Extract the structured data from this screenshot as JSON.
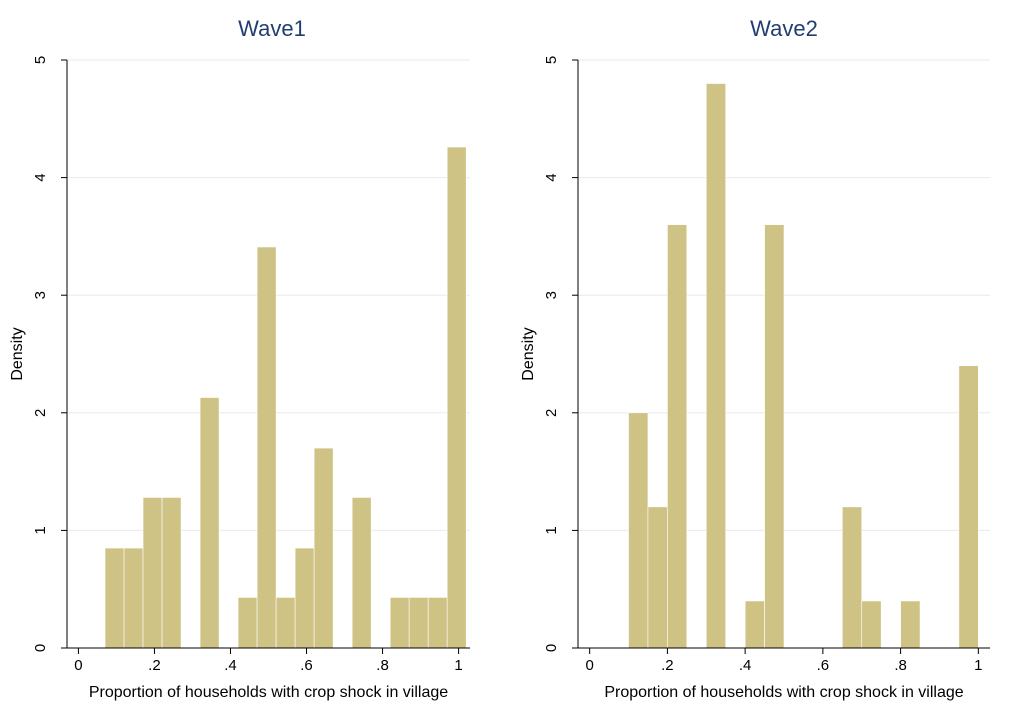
{
  "chart_data": [
    {
      "type": "bar",
      "title": "Wave1",
      "xlabel": "Proportion of households with crop shock in village",
      "ylabel": "Density",
      "xlim": [
        -0.03,
        1.03
      ],
      "ylim": [
        0,
        5
      ],
      "xticks": [
        0,
        0.2,
        0.4,
        0.6,
        0.8,
        1
      ],
      "xtick_labels": [
        "0",
        ".2",
        ".4",
        ".6",
        ".8",
        "1"
      ],
      "yticks": [
        0,
        1,
        2,
        3,
        4,
        5
      ],
      "ytick_labels": [
        "0",
        "1",
        "2",
        "3",
        "4",
        "5"
      ],
      "grid": true,
      "bin_width": 0.05,
      "bins": [
        {
          "x0": 0.07,
          "x1": 0.12,
          "density": 0.85
        },
        {
          "x0": 0.12,
          "x1": 0.17,
          "density": 0.85
        },
        {
          "x0": 0.17,
          "x1": 0.22,
          "density": 1.28
        },
        {
          "x0": 0.22,
          "x1": 0.27,
          "density": 1.28
        },
        {
          "x0": 0.32,
          "x1": 0.37,
          "density": 2.13
        },
        {
          "x0": 0.42,
          "x1": 0.47,
          "density": 0.43
        },
        {
          "x0": 0.47,
          "x1": 0.52,
          "density": 3.41
        },
        {
          "x0": 0.52,
          "x1": 0.57,
          "density": 0.43
        },
        {
          "x0": 0.57,
          "x1": 0.62,
          "density": 0.85
        },
        {
          "x0": 0.62,
          "x1": 0.67,
          "density": 1.7
        },
        {
          "x0": 0.72,
          "x1": 0.77,
          "density": 1.28
        },
        {
          "x0": 0.82,
          "x1": 0.87,
          "density": 0.43
        },
        {
          "x0": 0.87,
          "x1": 0.92,
          "density": 0.43
        },
        {
          "x0": 0.92,
          "x1": 0.97,
          "density": 0.43
        },
        {
          "x0": 0.97,
          "x1": 1.02,
          "density": 4.26
        }
      ]
    },
    {
      "type": "bar",
      "title": "Wave2",
      "xlabel": "Proportion of households with crop shock in village",
      "ylabel": "Density",
      "xlim": [
        -0.03,
        1.03
      ],
      "ylim": [
        0,
        5
      ],
      "xticks": [
        0,
        0.2,
        0.4,
        0.6,
        0.8,
        1
      ],
      "xtick_labels": [
        "0",
        ".2",
        ".4",
        ".6",
        ".8",
        "1"
      ],
      "yticks": [
        0,
        1,
        2,
        3,
        4,
        5
      ],
      "ytick_labels": [
        "0",
        "1",
        "2",
        "3",
        "4",
        "5"
      ],
      "grid": true,
      "bin_width": 0.05,
      "bins": [
        {
          "x0": 0.1,
          "x1": 0.15,
          "density": 2.0
        },
        {
          "x0": 0.15,
          "x1": 0.2,
          "density": 1.2
        },
        {
          "x0": 0.2,
          "x1": 0.25,
          "density": 3.6
        },
        {
          "x0": 0.3,
          "x1": 0.35,
          "density": 4.8
        },
        {
          "x0": 0.4,
          "x1": 0.45,
          "density": 0.4
        },
        {
          "x0": 0.45,
          "x1": 0.5,
          "density": 3.6
        },
        {
          "x0": 0.65,
          "x1": 0.7,
          "density": 1.2
        },
        {
          "x0": 0.7,
          "x1": 0.75,
          "density": 0.4
        },
        {
          "x0": 0.8,
          "x1": 0.85,
          "density": 0.4
        },
        {
          "x0": 0.95,
          "x1": 1.0,
          "density": 2.4
        }
      ]
    }
  ]
}
